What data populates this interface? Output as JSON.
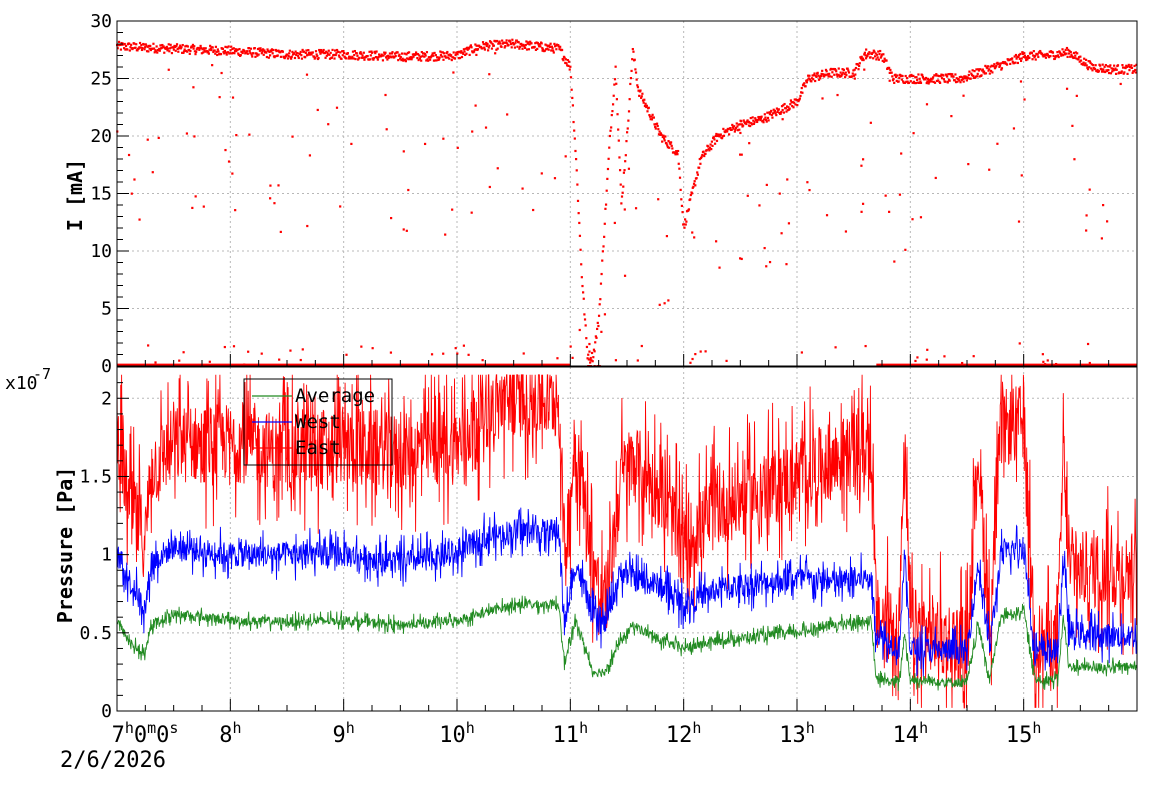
{
  "chart_data": [
    {
      "type": "scatter",
      "ylabel": "I [mA]",
      "ylim": [
        0,
        30
      ],
      "y_ticks": [
        "0",
        "5",
        "10",
        "15",
        "20",
        "25",
        "30"
      ],
      "x_range_hours": [
        7,
        16
      ],
      "grid": true,
      "series": [
        {
          "color": "#ff0000",
          "main_trace": [
            [
              7.0,
              27.8
            ],
            [
              7.5,
              27.6
            ],
            [
              8.0,
              27.4
            ],
            [
              8.5,
              27.1
            ],
            [
              9.0,
              27.1
            ],
            [
              9.5,
              26.9
            ],
            [
              10.0,
              27.0
            ],
            [
              10.2,
              27.8
            ],
            [
              10.5,
              28.0
            ],
            [
              10.9,
              27.6
            ],
            [
              11.0,
              26.0
            ],
            [
              11.05,
              18.0
            ],
            [
              11.1,
              8.0
            ],
            [
              11.15,
              1.0
            ],
            [
              11.2,
              0.8
            ],
            [
              11.25,
              4.0
            ],
            [
              11.3,
              12.0
            ],
            [
              11.35,
              20.0
            ],
            [
              11.4,
              26.0
            ],
            [
              11.45,
              14.0
            ],
            [
              11.5,
              20.0
            ],
            [
              11.55,
              27.5
            ],
            [
              11.6,
              24.0
            ],
            [
              11.7,
              22.0
            ],
            [
              11.8,
              20.0
            ],
            [
              11.95,
              18.5
            ],
            [
              12.0,
              12.0
            ],
            [
              12.05,
              14.0
            ],
            [
              12.15,
              18.0
            ],
            [
              12.3,
              20.0
            ],
            [
              12.5,
              21.0
            ],
            [
              12.7,
              21.5
            ],
            [
              12.9,
              22.5
            ],
            [
              13.0,
              23.0
            ],
            [
              13.1,
              25.0
            ],
            [
              13.3,
              25.5
            ],
            [
              13.5,
              25.5
            ],
            [
              13.6,
              27.2
            ],
            [
              13.75,
              27.0
            ],
            [
              13.85,
              25.0
            ],
            [
              13.95,
              25.0
            ],
            [
              14.45,
              25.0
            ],
            [
              14.6,
              25.5
            ],
            [
              14.9,
              26.5
            ],
            [
              15.0,
              27.0
            ],
            [
              15.2,
              27.0
            ],
            [
              15.4,
              27.3
            ],
            [
              15.6,
              26.0
            ],
            [
              15.8,
              25.8
            ],
            [
              16.0,
              25.8
            ]
          ],
          "zero_baseline_hours": [
            [
              7.0,
              11.0
            ],
            [
              13.7,
              16.0
            ]
          ]
        }
      ]
    },
    {
      "type": "line",
      "ylabel": "Pressure [Pa]",
      "y_multiplier": "x10",
      "y_exponent": "-7",
      "ylim": [
        0,
        2.2
      ],
      "y_ticks": [
        "0",
        "0.5",
        "1",
        "1.5",
        "2"
      ],
      "x_range_hours": [
        7,
        16
      ],
      "x_tick_labels": [
        {
          "hour": 7,
          "text": "7",
          "sup": "h",
          "extra": "0",
          "extra_sup": "m",
          "extra2": "0",
          "extra2_sup": "s"
        },
        {
          "hour": 8,
          "text": "8",
          "sup": "h"
        },
        {
          "hour": 9,
          "text": "9",
          "sup": "h"
        },
        {
          "hour": 10,
          "text": "10",
          "sup": "h"
        },
        {
          "hour": 11,
          "text": "11",
          "sup": "h"
        },
        {
          "hour": 12,
          "text": "12",
          "sup": "h"
        },
        {
          "hour": 13,
          "text": "13",
          "sup": "h"
        },
        {
          "hour": 14,
          "text": "14",
          "sup": "h"
        },
        {
          "hour": 15,
          "text": "15",
          "sup": "h"
        }
      ],
      "x_date": "2/6/2026",
      "legend": {
        "placement": "top-left",
        "entries": [
          "Average",
          "West",
          "East"
        ]
      },
      "grid": true,
      "series": [
        {
          "name": "Average",
          "color": "#228b22",
          "values": [
            [
              7.0,
              0.58
            ],
            [
              7.1,
              0.45
            ],
            [
              7.25,
              0.35
            ],
            [
              7.3,
              0.55
            ],
            [
              7.5,
              0.62
            ],
            [
              8.0,
              0.58
            ],
            [
              8.5,
              0.57
            ],
            [
              9.0,
              0.58
            ],
            [
              9.5,
              0.55
            ],
            [
              10.0,
              0.58
            ],
            [
              10.2,
              0.62
            ],
            [
              10.5,
              0.68
            ],
            [
              10.9,
              0.68
            ],
            [
              10.95,
              0.3
            ],
            [
              11.05,
              0.58
            ],
            [
              11.2,
              0.25
            ],
            [
              11.3,
              0.25
            ],
            [
              11.45,
              0.45
            ],
            [
              11.55,
              0.55
            ],
            [
              11.8,
              0.45
            ],
            [
              12.0,
              0.4
            ],
            [
              12.3,
              0.45
            ],
            [
              12.7,
              0.48
            ],
            [
              13.0,
              0.5
            ],
            [
              13.3,
              0.55
            ],
            [
              13.65,
              0.58
            ],
            [
              13.7,
              0.2
            ],
            [
              13.9,
              0.18
            ],
            [
              13.95,
              0.5
            ],
            [
              14.0,
              0.2
            ],
            [
              14.5,
              0.18
            ],
            [
              14.6,
              0.55
            ],
            [
              14.7,
              0.2
            ],
            [
              14.8,
              0.6
            ],
            [
              15.0,
              0.65
            ],
            [
              15.1,
              0.2
            ],
            [
              15.3,
              0.2
            ],
            [
              15.35,
              0.6
            ],
            [
              15.4,
              0.28
            ],
            [
              15.7,
              0.28
            ],
            [
              16.0,
              0.28
            ]
          ],
          "noise": 0.03
        },
        {
          "name": "West",
          "color": "#0000ff",
          "values": [
            [
              7.0,
              1.0
            ],
            [
              7.1,
              0.85
            ],
            [
              7.25,
              0.65
            ],
            [
              7.3,
              0.95
            ],
            [
              7.5,
              1.05
            ],
            [
              8.0,
              1.0
            ],
            [
              8.5,
              1.0
            ],
            [
              9.0,
              1.0
            ],
            [
              9.5,
              0.95
            ],
            [
              10.0,
              1.0
            ],
            [
              10.2,
              1.1
            ],
            [
              10.5,
              1.15
            ],
            [
              10.9,
              1.15
            ],
            [
              10.95,
              0.55
            ],
            [
              11.05,
              0.95
            ],
            [
              11.2,
              0.6
            ],
            [
              11.3,
              0.55
            ],
            [
              11.45,
              0.9
            ],
            [
              11.55,
              0.85
            ],
            [
              11.8,
              0.8
            ],
            [
              12.0,
              0.68
            ],
            [
              12.3,
              0.78
            ],
            [
              12.7,
              0.82
            ],
            [
              13.0,
              0.85
            ],
            [
              13.3,
              0.82
            ],
            [
              13.65,
              0.85
            ],
            [
              13.7,
              0.5
            ],
            [
              13.9,
              0.4
            ],
            [
              13.95,
              1.0
            ],
            [
              14.0,
              0.4
            ],
            [
              14.5,
              0.38
            ],
            [
              14.6,
              0.95
            ],
            [
              14.7,
              0.4
            ],
            [
              14.8,
              1.0
            ],
            [
              15.0,
              1.05
            ],
            [
              15.1,
              0.38
            ],
            [
              15.3,
              0.38
            ],
            [
              15.35,
              1.0
            ],
            [
              15.4,
              0.5
            ],
            [
              15.7,
              0.48
            ],
            [
              16.0,
              0.48
            ]
          ],
          "noise": 0.08
        },
        {
          "name": "East",
          "color": "#ff0000",
          "values": [
            [
              7.0,
              1.8
            ],
            [
              7.1,
              1.35
            ],
            [
              7.25,
              1.1
            ],
            [
              7.3,
              1.55
            ],
            [
              7.5,
              1.7
            ],
            [
              8.0,
              1.72
            ],
            [
              8.5,
              1.65
            ],
            [
              9.0,
              1.7
            ],
            [
              9.5,
              1.65
            ],
            [
              10.0,
              1.7
            ],
            [
              10.2,
              1.9
            ],
            [
              10.5,
              2.0
            ],
            [
              10.9,
              1.98
            ],
            [
              10.95,
              1.0
            ],
            [
              11.05,
              1.75
            ],
            [
              11.2,
              0.95
            ],
            [
              11.3,
              0.62
            ],
            [
              11.45,
              1.5
            ],
            [
              11.55,
              1.6
            ],
            [
              11.8,
              1.4
            ],
            [
              12.0,
              1.05
            ],
            [
              12.3,
              1.3
            ],
            [
              12.7,
              1.4
            ],
            [
              13.0,
              1.5
            ],
            [
              13.3,
              1.6
            ],
            [
              13.65,
              1.7
            ],
            [
              13.7,
              0.6
            ],
            [
              13.9,
              0.55
            ],
            [
              13.95,
              1.65
            ],
            [
              14.0,
              0.55
            ],
            [
              14.5,
              0.42
            ],
            [
              14.6,
              1.7
            ],
            [
              14.7,
              0.5
            ],
            [
              14.8,
              1.8
            ],
            [
              15.0,
              1.85
            ],
            [
              15.1,
              0.45
            ],
            [
              15.3,
              0.45
            ],
            [
              15.35,
              1.7
            ],
            [
              15.4,
              0.9
            ],
            [
              15.7,
              0.9
            ],
            [
              16.0,
              0.9
            ]
          ],
          "noise": 0.25
        }
      ]
    }
  ]
}
